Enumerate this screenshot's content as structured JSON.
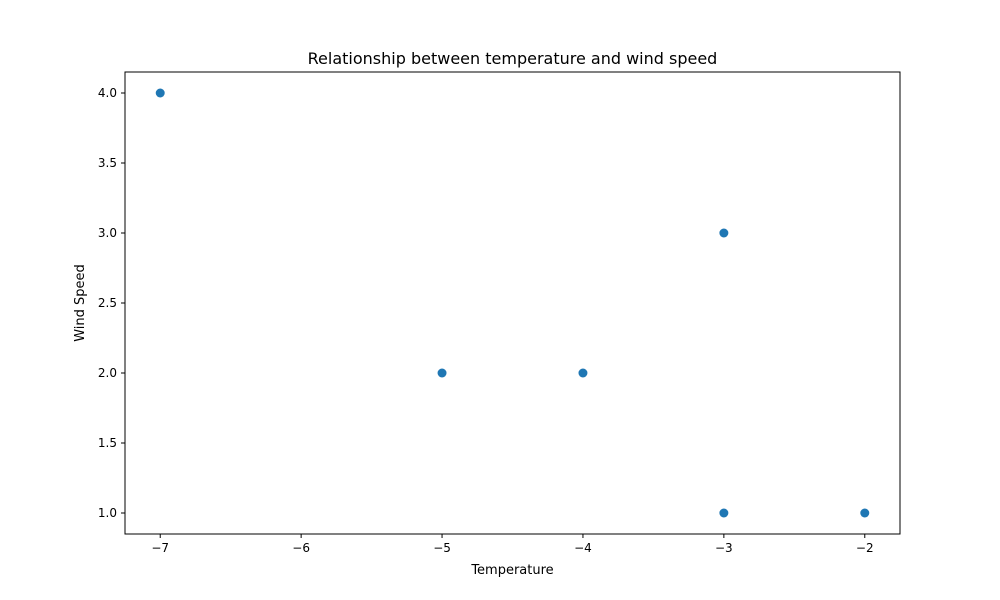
{
  "chart_data": {
    "type": "scatter",
    "title": "Relationship between temperature and wind speed",
    "xlabel": "Temperature",
    "ylabel": "Wind Speed",
    "x": [
      -7,
      -5,
      -4,
      -3,
      -3,
      -2
    ],
    "y": [
      4.0,
      2.0,
      2.0,
      3.0,
      1.0,
      1.0
    ],
    "xlim": [
      -7.25,
      -1.75
    ],
    "ylim": [
      0.85,
      4.15
    ],
    "xticks": [
      -7,
      -6,
      -5,
      -4,
      -3,
      -2
    ],
    "xtick_labels": [
      "−7",
      "−6",
      "−5",
      "−4",
      "−3",
      "−2"
    ],
    "yticks": [
      1.0,
      1.5,
      2.0,
      2.5,
      3.0,
      3.5,
      4.0
    ],
    "ytick_labels": [
      "1.0",
      "1.5",
      "2.0",
      "2.5",
      "3.0",
      "3.5",
      "4.0"
    ],
    "grid": false,
    "marker_color": "#1f77b4"
  }
}
